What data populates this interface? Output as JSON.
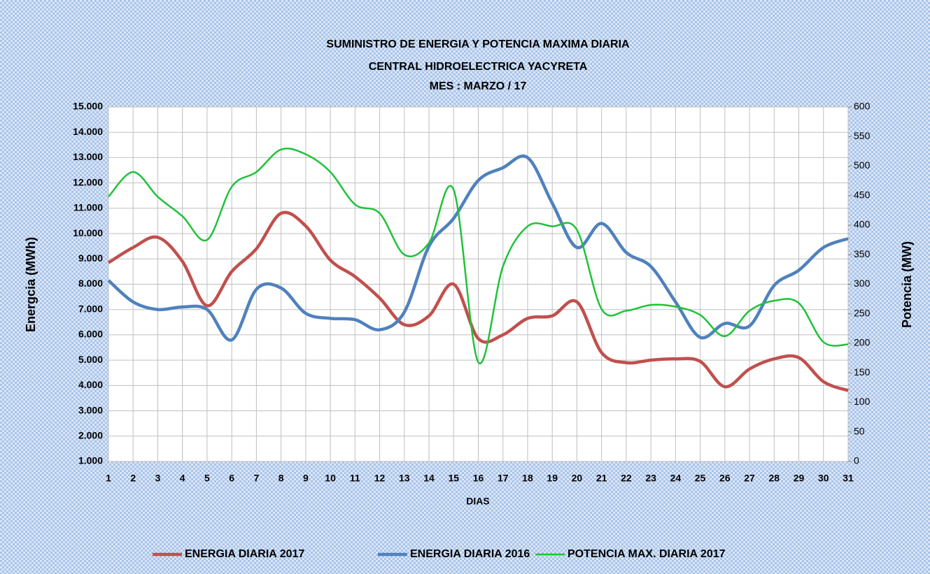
{
  "chart_data": {
    "type": "line",
    "title": "SUMINISTRO DE ENERGIA Y POTENCIA MAXIMA DIARIA",
    "subtitle": "CENTRAL HIDROELECTRICA YACYRETA",
    "subtitle2": "MES :  MARZO / 17",
    "xlabel": "DIAS",
    "ylabel": "Energcia (MWh)",
    "y2label": "Potencia (MW)",
    "categories": [
      "1",
      "2",
      "3",
      "4",
      "5",
      "6",
      "7",
      "8",
      "9",
      "10",
      "11",
      "12",
      "13",
      "14",
      "15",
      "16",
      "17",
      "18",
      "19",
      "20",
      "21",
      "22",
      "23",
      "24",
      "25",
      "26",
      "27",
      "28",
      "29",
      "30",
      "31"
    ],
    "ylim": [
      1000,
      15000
    ],
    "yticks": [
      {
        "value": 1000,
        "label": "1.000"
      },
      {
        "value": 2000,
        "label": "2.000"
      },
      {
        "value": 3000,
        "label": "3.000"
      },
      {
        "value": 4000,
        "label": "4.000"
      },
      {
        "value": 5000,
        "label": "5.000"
      },
      {
        "value": 6000,
        "label": "6.000"
      },
      {
        "value": 7000,
        "label": "7.000"
      },
      {
        "value": 8000,
        "label": "8.000"
      },
      {
        "value": 9000,
        "label": "9.000"
      },
      {
        "value": 10000,
        "label": "10.000"
      },
      {
        "value": 11000,
        "label": "11.000"
      },
      {
        "value": 12000,
        "label": "12.000"
      },
      {
        "value": 13000,
        "label": "13.000"
      },
      {
        "value": 14000,
        "label": "14.000"
      },
      {
        "value": 15000,
        "label": "15.000"
      }
    ],
    "y2lim": [
      0,
      600
    ],
    "y2ticks": [
      0,
      50,
      100,
      150,
      200,
      250,
      300,
      350,
      400,
      450,
      500,
      550,
      600
    ],
    "grid": true,
    "legend": "bottom",
    "series": [
      {
        "name": "ENERGIA DIARIA 2017",
        "color": "#c0504d",
        "values": [
          8850,
          9450,
          9850,
          8900,
          7150,
          8500,
          9400,
          10800,
          10300,
          8950,
          8300,
          7450,
          6400,
          6750,
          8000,
          5850,
          6000,
          6650,
          6750,
          7300,
          5300,
          4900,
          5000,
          5050,
          4950,
          3950,
          4650,
          5050,
          5100,
          4150,
          3800
        ]
      },
      {
        "name": "ENERGIA DIARIA 2016",
        "color": "#4f81bd",
        "values": [
          8150,
          7300,
          7000,
          7100,
          7000,
          5800,
          7800,
          7850,
          6850,
          6650,
          6600,
          6200,
          6900,
          9500,
          10600,
          12100,
          12600,
          13000,
          11200,
          9450,
          10400,
          9250,
          8700,
          7300,
          5900,
          6450,
          6350,
          7950,
          8550,
          9450,
          9800
        ]
      },
      {
        "name": "POTENCIA MAX. DIARIA 2017",
        "color": "#1fc23a",
        "axis": "y2",
        "values": [
          448,
          490,
          448,
          415,
          375,
          465,
          490,
          528,
          520,
          490,
          435,
          420,
          350,
          370,
          460,
          168,
          330,
          398,
          398,
          392,
          258,
          255,
          265,
          262,
          248,
          212,
          255,
          272,
          268,
          202,
          198
        ]
      }
    ]
  }
}
